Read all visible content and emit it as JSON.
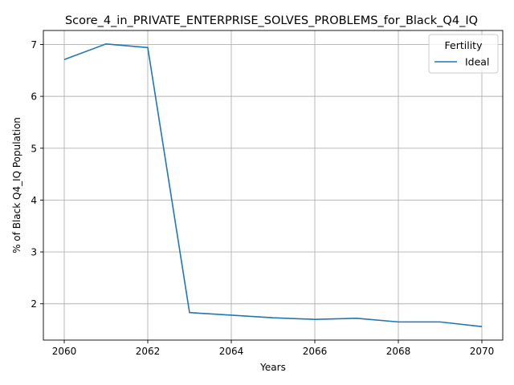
{
  "chart_data": {
    "type": "line",
    "title": "Score_4_in_PRIVATE_ENTERPRISE_SOLVES_PROBLEMS_for_Black_Q4_IQ",
    "xlabel": "Years",
    "ylabel": "% of Black Q4_IQ Population",
    "x": [
      2060,
      2061,
      2062,
      2063,
      2064,
      2065,
      2066,
      2067,
      2068,
      2069,
      2070
    ],
    "series": [
      {
        "name": "Ideal",
        "color": "#1f77b4",
        "values": [
          6.71,
          7.01,
          6.94,
          1.83,
          1.78,
          1.73,
          1.7,
          1.72,
          1.65,
          1.65,
          1.56
        ]
      }
    ],
    "xlim": [
      2059.5,
      2070.5
    ],
    "ylim": [
      1.3,
      7.27
    ],
    "xticks": [
      2060,
      2062,
      2064,
      2066,
      2068,
      2070
    ],
    "yticks": [
      2,
      3,
      4,
      5,
      6,
      7
    ],
    "grid": true,
    "legend": {
      "title": "Fertility",
      "placement": "top-right"
    }
  }
}
